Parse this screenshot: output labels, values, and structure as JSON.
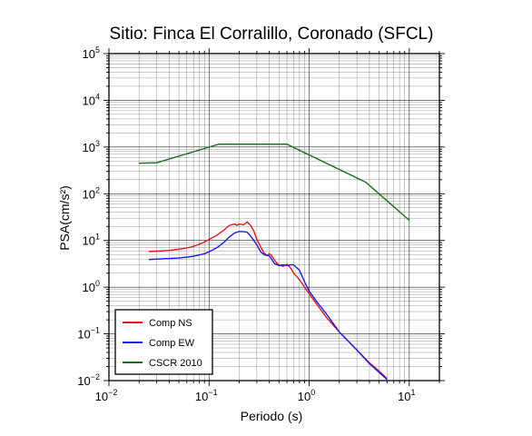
{
  "chart_data": {
    "type": "line",
    "title": "Sitio: Finca El Corralillo, Coronado (SFCL)",
    "xlabel": "Periodo (s)",
    "ylabel": "PSA(cm/s²)",
    "xscale": "log",
    "yscale": "log",
    "xlim": [
      0.01,
      20
    ],
    "ylim": [
      0.01,
      100000
    ],
    "grid": true,
    "legend_position": "bottom-left",
    "x_ticks": [
      {
        "base": "10",
        "exp": "−2"
      },
      {
        "base": "10",
        "exp": "−1"
      },
      {
        "base": "10",
        "exp": "0"
      },
      {
        "base": "10",
        "exp": "1"
      }
    ],
    "y_ticks": [
      {
        "base": "10",
        "exp": "−2"
      },
      {
        "base": "10",
        "exp": "−1"
      },
      {
        "base": "10",
        "exp": "0"
      },
      {
        "base": "10",
        "exp": "1"
      },
      {
        "base": "10",
        "exp": "2"
      },
      {
        "base": "10",
        "exp": "3"
      },
      {
        "base": "10",
        "exp": "4"
      },
      {
        "base": "10",
        "exp": "5"
      }
    ],
    "series": [
      {
        "name": "Comp NS",
        "color": "#e8151b",
        "x": [
          0.025,
          0.03,
          0.04,
          0.05,
          0.06,
          0.07,
          0.08,
          0.09,
          0.1,
          0.12,
          0.14,
          0.16,
          0.18,
          0.19,
          0.2,
          0.22,
          0.24,
          0.26,
          0.28,
          0.3,
          0.32,
          0.35,
          0.38,
          0.4,
          0.42,
          0.45,
          0.48,
          0.5,
          0.55,
          0.6,
          0.65,
          0.7,
          0.8,
          0.9,
          1.0,
          1.2,
          1.5,
          2.0,
          3.0,
          4.0,
          5.0,
          6.0
        ],
        "y": [
          5.8,
          5.9,
          6.1,
          6.5,
          6.9,
          7.5,
          8.3,
          9.3,
          10.5,
          13.0,
          16.5,
          21.0,
          22.5,
          21.0,
          22.5,
          21.5,
          25.0,
          21.0,
          16.0,
          10.5,
          8.0,
          5.6,
          4.7,
          5.2,
          4.8,
          3.8,
          3.2,
          3.0,
          2.8,
          3.1,
          2.6,
          2.0,
          1.45,
          1.0,
          0.72,
          0.42,
          0.22,
          0.11,
          0.045,
          0.024,
          0.016,
          0.011
        ]
      },
      {
        "name": "Comp EW",
        "color": "#1a1aee",
        "x": [
          0.025,
          0.03,
          0.04,
          0.05,
          0.06,
          0.07,
          0.08,
          0.09,
          0.1,
          0.12,
          0.14,
          0.16,
          0.18,
          0.2,
          0.22,
          0.24,
          0.26,
          0.28,
          0.3,
          0.33,
          0.36,
          0.4,
          0.45,
          0.5,
          0.55,
          0.6,
          0.65,
          0.7,
          0.8,
          0.9,
          1.0,
          1.2,
          1.5,
          2.0,
          3.0,
          4.0,
          5.0,
          6.0
        ],
        "y": [
          3.9,
          4.0,
          4.1,
          4.2,
          4.4,
          4.6,
          4.9,
          5.2,
          5.7,
          7.0,
          9.0,
          12.0,
          14.5,
          15.5,
          15.5,
          15.0,
          12.5,
          10.0,
          8.0,
          5.6,
          4.9,
          4.7,
          3.2,
          2.9,
          3.0,
          2.9,
          3.0,
          3.0,
          2.3,
          1.3,
          0.82,
          0.48,
          0.26,
          0.11,
          0.045,
          0.023,
          0.015,
          0.0105
        ]
      },
      {
        "name": "CSCR 2010",
        "color": "#1a6e1a",
        "x": [
          0.02,
          0.03,
          0.125,
          0.6,
          3.7,
          10.0
        ],
        "y": [
          450,
          460,
          1150,
          1150,
          175,
          27
        ]
      }
    ]
  }
}
